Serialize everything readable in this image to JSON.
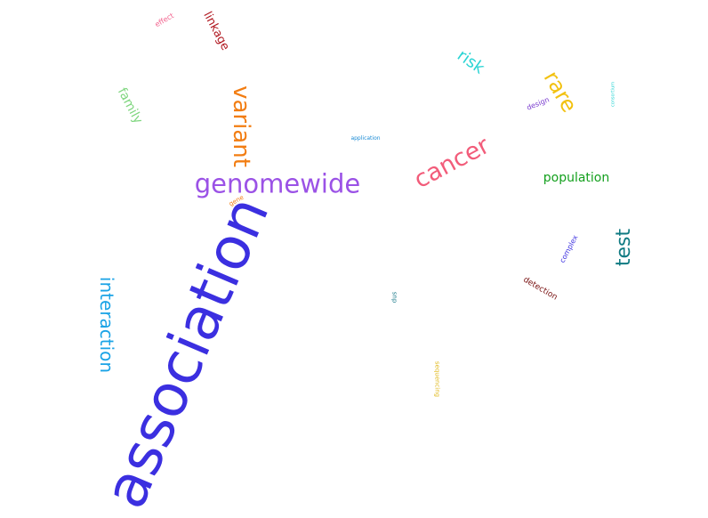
{
  "words": [
    {
      "text": "association",
      "color": "#3b2fe0"
    },
    {
      "text": "genomewide",
      "color": "#9b52e6"
    },
    {
      "text": "variant",
      "color": "#f27d12"
    },
    {
      "text": "interaction",
      "color": "#1aa3e6"
    },
    {
      "text": "cancer",
      "color": "#f25c7a"
    },
    {
      "text": "rare",
      "color": "#f2c10f"
    },
    {
      "text": "test",
      "color": "#0f7a82"
    },
    {
      "text": "population",
      "color": "#14a01e"
    },
    {
      "text": "risk",
      "color": "#2ad4d4"
    },
    {
      "text": "family",
      "color": "#7fd67f"
    },
    {
      "text": "linkage",
      "color": "#b0171f"
    },
    {
      "text": "effect",
      "color": "#f2608c"
    },
    {
      "text": "design",
      "color": "#7a3ccf"
    },
    {
      "text": "application",
      "color": "#1a8ad4"
    },
    {
      "text": "gene",
      "color": "#f27d12"
    },
    {
      "text": "complex",
      "color": "#3b2fe0"
    },
    {
      "text": "detection",
      "color": "#7a1414"
    },
    {
      "text": "snp",
      "color": "#1a7a8a"
    },
    {
      "text": "sequencing",
      "color": "#e0b81a"
    },
    {
      "text": "consortium",
      "color": "#2ad4d4"
    }
  ]
}
